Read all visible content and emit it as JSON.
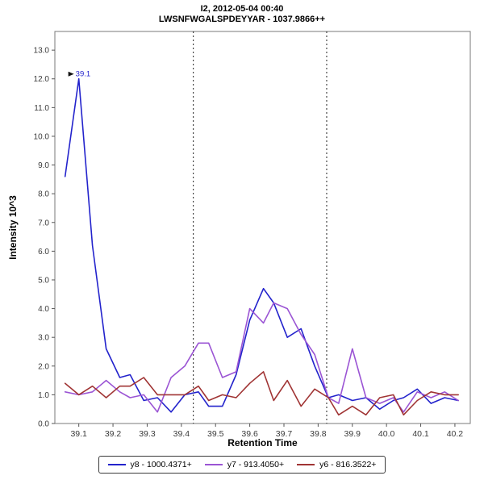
{
  "chart": {
    "title_line1": "I2, 2012-05-04 00:40",
    "title_line2": "LWSNFWGALSPDEYYAR - 1037.9866++",
    "ylabel": "Intensity 10^3",
    "xlabel": "Retention Time"
  },
  "chart_data": {
    "type": "line",
    "title": "I2, 2012-05-04 00:40",
    "subtitle": "LWSNFWGALSPDEYYAR - 1037.9866++",
    "xlabel": "Retention Time",
    "ylabel": "Intensity 10^3",
    "xlim": [
      39.03,
      40.245
    ],
    "ylim": [
      0,
      13.65
    ],
    "xticks": [
      39.1,
      39.2,
      39.3,
      39.4,
      39.5,
      39.6,
      39.7,
      39.8,
      39.9,
      40.0,
      40.1,
      40.2
    ],
    "yticks": [
      0.0,
      1.0,
      2.0,
      3.0,
      4.0,
      5.0,
      6.0,
      7.0,
      8.0,
      9.0,
      10.0,
      11.0,
      12.0,
      13.0
    ],
    "grid": false,
    "legend_position": "bottom",
    "x": [
      39.06,
      39.1,
      39.14,
      39.18,
      39.22,
      39.25,
      39.29,
      39.33,
      39.37,
      39.41,
      39.45,
      39.48,
      39.52,
      39.56,
      39.6,
      39.64,
      39.67,
      39.71,
      39.75,
      39.79,
      39.83,
      39.86,
      39.9,
      39.94,
      39.98,
      40.02,
      40.05,
      40.09,
      40.13,
      40.17,
      40.21
    ],
    "series": [
      {
        "name": "y8 - 1000.4371+",
        "color": "#2323cc",
        "values": [
          8.6,
          12.0,
          6.2,
          2.6,
          1.6,
          1.7,
          0.8,
          0.9,
          0.4,
          1.0,
          1.1,
          0.6,
          0.6,
          1.7,
          3.6,
          4.7,
          4.2,
          3.0,
          3.3,
          2.0,
          0.9,
          1.0,
          0.8,
          0.9,
          0.5,
          0.8,
          0.9,
          1.2,
          0.7,
          0.9,
          0.8
        ]
      },
      {
        "name": "y7 - 913.4050+",
        "color": "#9b55d4",
        "values": [
          1.1,
          1.0,
          1.1,
          1.5,
          1.1,
          0.9,
          1.0,
          0.4,
          1.6,
          2.0,
          2.8,
          2.8,
          1.6,
          1.8,
          4.0,
          3.5,
          4.2,
          4.0,
          3.1,
          2.4,
          0.9,
          0.7,
          2.6,
          0.9,
          0.7,
          0.9,
          0.4,
          1.1,
          0.9,
          1.1,
          0.8
        ]
      },
      {
        "name": "y6 - 816.3522+",
        "color": "#a03434",
        "values": [
          1.4,
          1.0,
          1.3,
          0.9,
          1.3,
          1.3,
          1.6,
          1.0,
          1.0,
          1.0,
          1.3,
          0.8,
          1.0,
          0.9,
          1.4,
          1.8,
          0.8,
          1.5,
          0.6,
          1.2,
          0.9,
          0.3,
          0.6,
          0.3,
          0.9,
          1.0,
          0.3,
          0.8,
          1.1,
          1.0,
          1.0
        ]
      }
    ],
    "boundaries": [
      39.435,
      39.825
    ],
    "annotation": {
      "x": 39.1,
      "y": 12.0,
      "label": "39.1",
      "color": "#2323cc"
    }
  },
  "legend": {
    "items": [
      {
        "label": "y8 - 1000.4371+",
        "color": "#2323cc"
      },
      {
        "label": "y7 - 913.4050+",
        "color": "#9b55d4"
      },
      {
        "label": "y6 - 816.3522+",
        "color": "#a03434"
      }
    ]
  }
}
